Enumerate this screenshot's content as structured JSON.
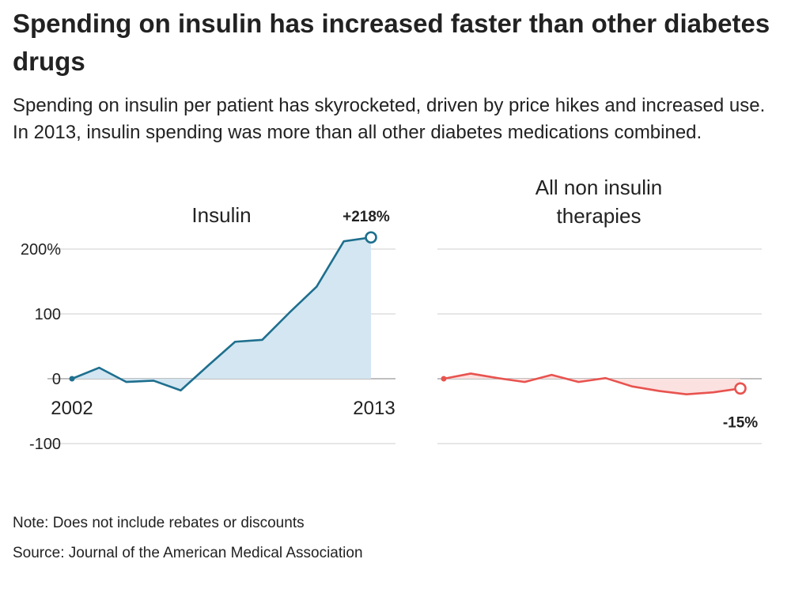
{
  "title": "Spending on insulin has increased faster than other diabetes drugs",
  "subtitle": "Spending on insulin per patient has skyrocketed, driven by price hikes and increased use. In 2013, insulin spending was more than all other diabetes medications combined.",
  "note": "Note: Does not include rebates or discounts",
  "source": "Source: Journal of the American Medical Association",
  "colors": {
    "insulin": "#1e6f8e",
    "insulin_fill": "#d3e6f1",
    "non_insulin": "#e8534f",
    "non_insulin_fill": "#fbe1e0"
  },
  "chart_data": [
    {
      "type": "area",
      "title": "Insulin",
      "x": [
        2002,
        2003,
        2004,
        2005,
        2006,
        2007,
        2008,
        2009,
        2010,
        2011,
        2012,
        2013
      ],
      "values": [
        0,
        17,
        -5,
        -3,
        -18,
        20,
        57,
        60,
        102,
        142,
        212,
        218
      ],
      "xtick_labels": [
        "2002",
        "2013"
      ],
      "yticks": [
        200,
        100,
        0,
        -100
      ],
      "ytick_labels": [
        "200%",
        "100",
        "0",
        "-100"
      ],
      "ylim": [
        -100,
        200
      ],
      "end_label": "+218%",
      "grid": true
    },
    {
      "type": "area",
      "title": "All non insulin therapies",
      "x": [
        2002,
        2003,
        2004,
        2005,
        2006,
        2007,
        2008,
        2009,
        2010,
        2011,
        2012,
        2013
      ],
      "values": [
        0,
        8,
        1,
        -5,
        6,
        -5,
        1,
        -12,
        -19,
        -24,
        -21,
        -15
      ],
      "ylim": [
        -100,
        200
      ],
      "end_label": "-15%",
      "grid": true
    }
  ]
}
